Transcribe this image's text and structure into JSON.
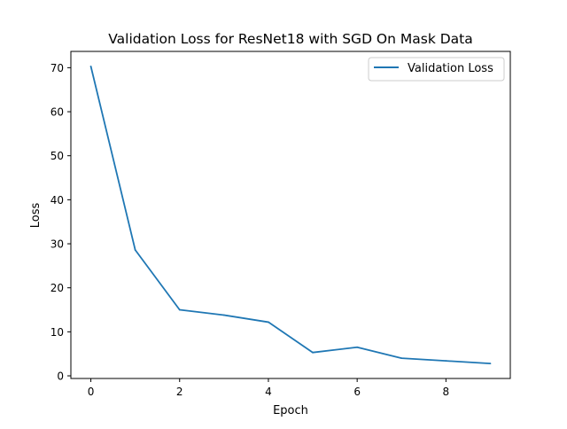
{
  "chart_data": {
    "type": "line",
    "title": "Validation Loss for ResNet18 with SGD On Mask Data",
    "xlabel": "Epoch",
    "ylabel": "Loss",
    "x": [
      0,
      1,
      2,
      3,
      4,
      5,
      6,
      7,
      8,
      9
    ],
    "series": [
      {
        "name": "Validation Loss",
        "color": "#1f77b4",
        "values": [
          70.3,
          28.6,
          15.0,
          13.8,
          12.2,
          5.3,
          6.5,
          4.0,
          3.4,
          2.8
        ]
      }
    ],
    "xlim": [
      -0.45,
      9.45
    ],
    "ylim": [
      -0.6,
      73.7
    ],
    "xticks": [
      0,
      2,
      4,
      6,
      8
    ],
    "yticks": [
      0,
      10,
      20,
      30,
      40,
      50,
      60,
      70
    ],
    "grid": false,
    "legend_position": "top-right"
  }
}
